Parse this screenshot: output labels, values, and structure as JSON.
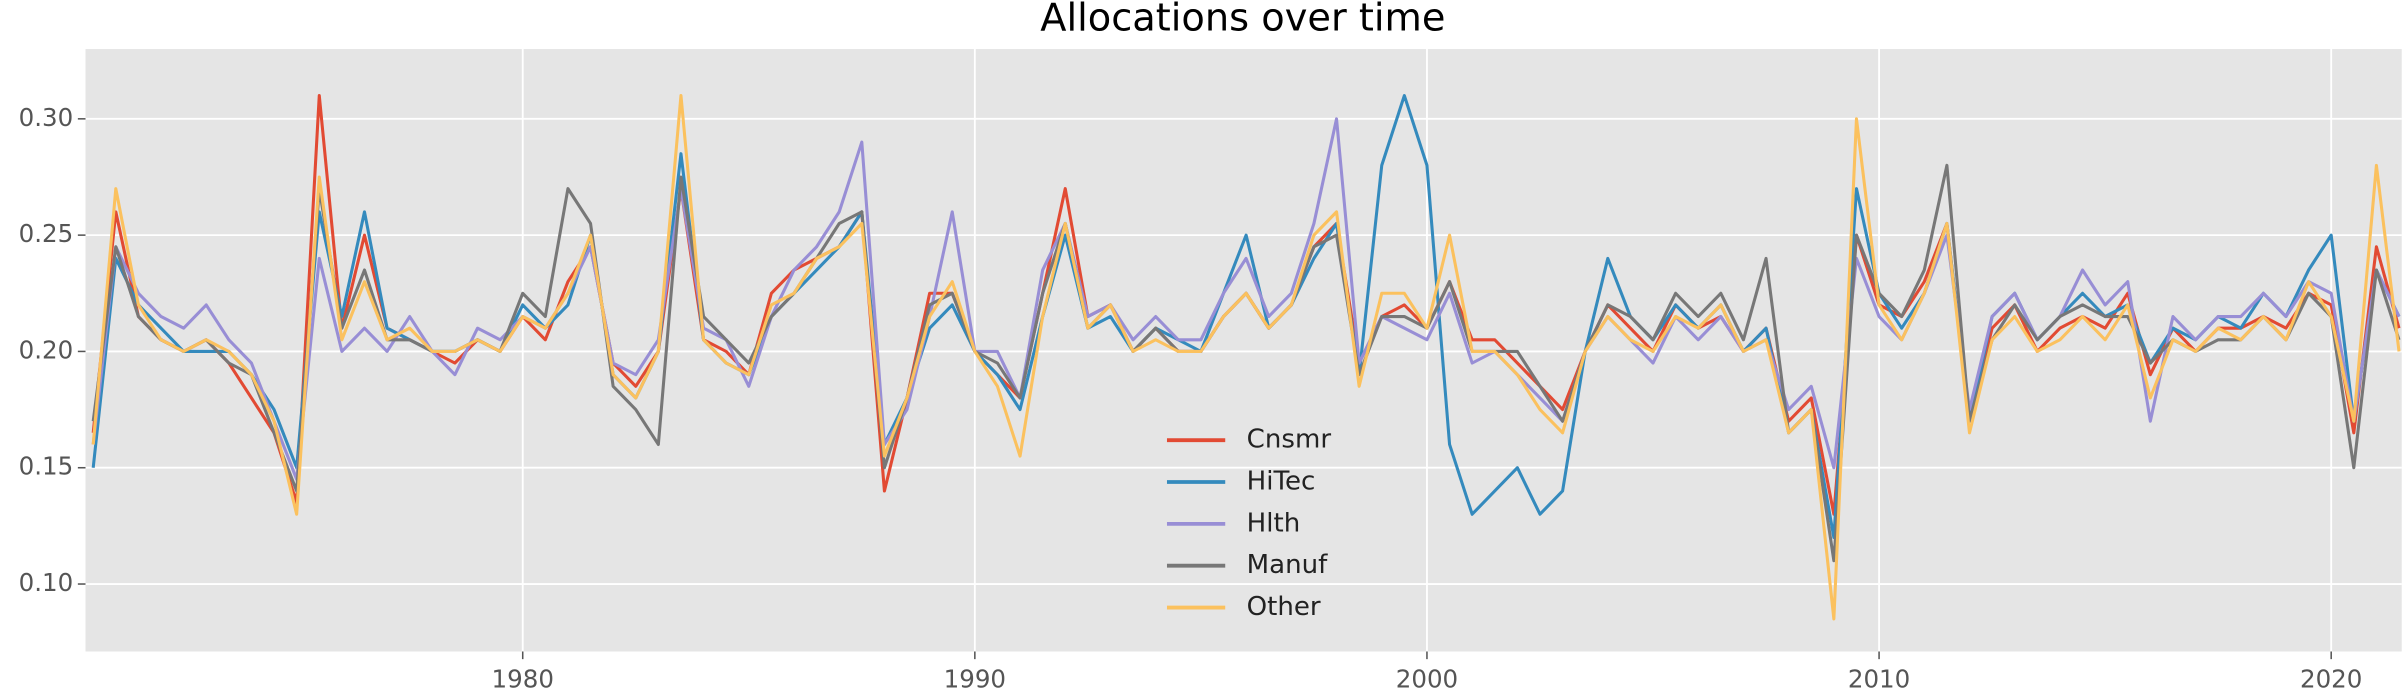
{
  "chart_data": {
    "type": "line",
    "title": "Allocations over time",
    "x": [
      1970.5,
      1971,
      1971.5,
      1972,
      1972.5,
      1973,
      1973.5,
      1974,
      1974.5,
      1975,
      1975.5,
      1976,
      1976.5,
      1977,
      1977.5,
      1978,
      1978.5,
      1979,
      1979.5,
      1980,
      1980.5,
      1981,
      1981.5,
      1982,
      1982.5,
      1983,
      1983.5,
      1984,
      1984.5,
      1985,
      1985.5,
      1986,
      1986.5,
      1987,
      1987.5,
      1988,
      1988.5,
      1989,
      1989.5,
      1990,
      1990.5,
      1991,
      1991.5,
      1992,
      1992.5,
      1993,
      1993.5,
      1994,
      1994.5,
      1995,
      1995.5,
      1996,
      1996.5,
      1997,
      1997.5,
      1998,
      1998.5,
      1999,
      1999.5,
      2000,
      2000.5,
      2001,
      2001.5,
      2002,
      2002.5,
      2003,
      2003.5,
      2004,
      2004.5,
      2005,
      2005.5,
      2006,
      2006.5,
      2007,
      2007.5,
      2008,
      2008.5,
      2009,
      2009.5,
      2010,
      2010.5,
      2011,
      2011.5,
      2012,
      2012.5,
      2013,
      2013.5,
      2014,
      2014.5,
      2015,
      2015.5,
      2016,
      2016.5,
      2017,
      2017.5,
      2018,
      2018.5,
      2019,
      2019.5,
      2020,
      2020.5,
      2021,
      2021.5
    ],
    "series": [
      {
        "name": "Cnsmr",
        "color": "#E24A33",
        "values": [
          0.165,
          0.26,
          0.215,
          0.205,
          0.2,
          0.205,
          0.195,
          0.18,
          0.165,
          0.135,
          0.31,
          0.21,
          0.25,
          0.21,
          0.205,
          0.2,
          0.195,
          0.205,
          0.2,
          0.215,
          0.205,
          0.23,
          0.245,
          0.195,
          0.185,
          0.2,
          0.27,
          0.205,
          0.2,
          0.19,
          0.225,
          0.235,
          0.24,
          0.245,
          0.26,
          0.14,
          0.18,
          0.225,
          0.225,
          0.2,
          0.19,
          0.18,
          0.225,
          0.27,
          0.215,
          0.22,
          0.2,
          0.21,
          0.2,
          0.2,
          0.215,
          0.225,
          0.21,
          0.22,
          0.245,
          0.255,
          0.195,
          0.215,
          0.22,
          0.21,
          0.23,
          0.205,
          0.205,
          0.195,
          0.185,
          0.175,
          0.2,
          0.22,
          0.21,
          0.2,
          0.22,
          0.21,
          0.215,
          0.2,
          0.21,
          0.17,
          0.18,
          0.13,
          0.25,
          0.22,
          0.215,
          0.23,
          0.255,
          0.17,
          0.21,
          0.22,
          0.2,
          0.21,
          0.215,
          0.21,
          0.225,
          0.19,
          0.21,
          0.2,
          0.21,
          0.21,
          0.215,
          0.21,
          0.225,
          0.22,
          0.165,
          0.245,
          0.21
        ]
      },
      {
        "name": "HiTec",
        "color": "#348ABD",
        "values": [
          0.15,
          0.24,
          0.22,
          0.21,
          0.2,
          0.2,
          0.2,
          0.19,
          0.175,
          0.15,
          0.26,
          0.215,
          0.26,
          0.21,
          0.205,
          0.2,
          0.2,
          0.205,
          0.2,
          0.22,
          0.21,
          0.22,
          0.25,
          0.19,
          0.18,
          0.2,
          0.285,
          0.205,
          0.195,
          0.19,
          0.215,
          0.225,
          0.235,
          0.245,
          0.26,
          0.16,
          0.18,
          0.21,
          0.22,
          0.2,
          0.19,
          0.175,
          0.215,
          0.25,
          0.21,
          0.215,
          0.2,
          0.21,
          0.205,
          0.2,
          0.225,
          0.25,
          0.21,
          0.22,
          0.24,
          0.255,
          0.19,
          0.28,
          0.31,
          0.28,
          0.16,
          0.13,
          0.14,
          0.15,
          0.13,
          0.14,
          0.2,
          0.24,
          0.215,
          0.205,
          0.22,
          0.21,
          0.22,
          0.2,
          0.21,
          0.165,
          0.175,
          0.12,
          0.27,
          0.225,
          0.21,
          0.225,
          0.255,
          0.17,
          0.215,
          0.225,
          0.205,
          0.215,
          0.225,
          0.215,
          0.22,
          0.195,
          0.21,
          0.205,
          0.215,
          0.21,
          0.225,
          0.215,
          0.235,
          0.25,
          0.17,
          0.235,
          0.215
        ]
      },
      {
        "name": "Hlth",
        "color": "#988ED5",
        "values": [
          0.16,
          0.245,
          0.225,
          0.215,
          0.21,
          0.22,
          0.205,
          0.195,
          0.17,
          0.145,
          0.24,
          0.2,
          0.21,
          0.2,
          0.215,
          0.2,
          0.19,
          0.21,
          0.205,
          0.215,
          0.21,
          0.225,
          0.245,
          0.195,
          0.19,
          0.205,
          0.27,
          0.21,
          0.205,
          0.185,
          0.215,
          0.235,
          0.245,
          0.26,
          0.29,
          0.16,
          0.175,
          0.215,
          0.26,
          0.2,
          0.2,
          0.18,
          0.235,
          0.255,
          0.215,
          0.22,
          0.205,
          0.215,
          0.205,
          0.205,
          0.225,
          0.24,
          0.215,
          0.225,
          0.255,
          0.3,
          0.195,
          0.215,
          0.21,
          0.205,
          0.225,
          0.195,
          0.2,
          0.19,
          0.18,
          0.17,
          0.2,
          0.215,
          0.205,
          0.195,
          0.215,
          0.205,
          0.215,
          0.2,
          0.205,
          0.175,
          0.185,
          0.15,
          0.24,
          0.215,
          0.205,
          0.225,
          0.25,
          0.175,
          0.215,
          0.225,
          0.205,
          0.215,
          0.235,
          0.22,
          0.23,
          0.17,
          0.215,
          0.205,
          0.215,
          0.215,
          0.225,
          0.215,
          0.23,
          0.225,
          0.17,
          0.235,
          0.215
        ]
      },
      {
        "name": "Manuf",
        "color": "#777777",
        "values": [
          0.17,
          0.245,
          0.215,
          0.205,
          0.2,
          0.205,
          0.195,
          0.19,
          0.165,
          0.14,
          0.27,
          0.21,
          0.235,
          0.205,
          0.205,
          0.2,
          0.2,
          0.205,
          0.2,
          0.225,
          0.215,
          0.27,
          0.255,
          0.185,
          0.175,
          0.16,
          0.275,
          0.215,
          0.205,
          0.195,
          0.215,
          0.225,
          0.24,
          0.255,
          0.26,
          0.15,
          0.18,
          0.22,
          0.225,
          0.2,
          0.195,
          0.18,
          0.225,
          0.255,
          0.21,
          0.22,
          0.2,
          0.21,
          0.2,
          0.2,
          0.215,
          0.225,
          0.21,
          0.22,
          0.245,
          0.25,
          0.19,
          0.215,
          0.215,
          0.21,
          0.23,
          0.2,
          0.2,
          0.2,
          0.185,
          0.17,
          0.2,
          0.22,
          0.215,
          0.205,
          0.225,
          0.215,
          0.225,
          0.205,
          0.24,
          0.165,
          0.175,
          0.11,
          0.25,
          0.225,
          0.215,
          0.235,
          0.28,
          0.17,
          0.205,
          0.22,
          0.205,
          0.215,
          0.22,
          0.215,
          0.215,
          0.195,
          0.205,
          0.2,
          0.205,
          0.205,
          0.215,
          0.205,
          0.225,
          0.215,
          0.15,
          0.235,
          0.205
        ]
      },
      {
        "name": "Other",
        "color": "#FBC15E",
        "values": [
          0.16,
          0.27,
          0.22,
          0.205,
          0.2,
          0.205,
          0.2,
          0.19,
          0.17,
          0.13,
          0.275,
          0.205,
          0.23,
          0.205,
          0.21,
          0.2,
          0.2,
          0.205,
          0.2,
          0.215,
          0.21,
          0.225,
          0.25,
          0.19,
          0.18,
          0.2,
          0.31,
          0.205,
          0.195,
          0.19,
          0.22,
          0.225,
          0.24,
          0.245,
          0.255,
          0.155,
          0.18,
          0.215,
          0.23,
          0.2,
          0.185,
          0.155,
          0.215,
          0.255,
          0.21,
          0.22,
          0.2,
          0.205,
          0.2,
          0.2,
          0.215,
          0.225,
          0.21,
          0.22,
          0.25,
          0.26,
          0.185,
          0.225,
          0.225,
          0.21,
          0.25,
          0.2,
          0.2,
          0.19,
          0.175,
          0.165,
          0.2,
          0.215,
          0.205,
          0.2,
          0.215,
          0.21,
          0.22,
          0.2,
          0.205,
          0.165,
          0.175,
          0.085,
          0.3,
          0.22,
          0.205,
          0.225,
          0.255,
          0.165,
          0.205,
          0.215,
          0.2,
          0.205,
          0.215,
          0.205,
          0.22,
          0.18,
          0.205,
          0.2,
          0.21,
          0.205,
          0.215,
          0.205,
          0.23,
          0.215,
          0.17,
          0.28,
          0.2
        ]
      }
    ],
    "xlim": [
      1970.33,
      2021.56
    ],
    "xticks": [
      1980,
      1990,
      2000,
      2010,
      2020
    ],
    "ylim": [
      0.071,
      0.33
    ],
    "yticks": [
      {
        "value": 0.1,
        "label": "0.10"
      },
      0.15,
      {
        "value": 0.2,
        "label": "0.20"
      },
      0.25,
      {
        "value": 0.3,
        "label": "0.30"
      }
    ],
    "grid": true,
    "legend": "lower center"
  }
}
